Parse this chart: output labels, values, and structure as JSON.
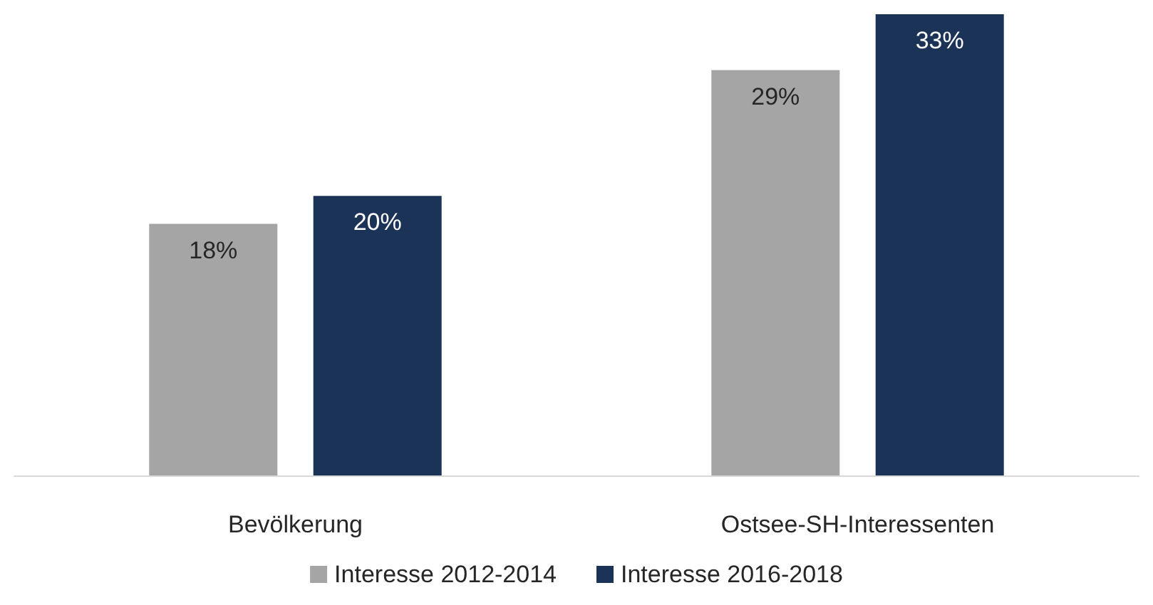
{
  "chart_data": {
    "type": "bar",
    "categories": [
      "Bevölkerung",
      "Ostsee-SH-Interessenten"
    ],
    "series": [
      {
        "name": "Interesse 2012-2014",
        "color": "#a5a5a5",
        "values": [
          18,
          29
        ],
        "value_labels": [
          "18%",
          "29%"
        ]
      },
      {
        "name": "Interesse 2016-2018",
        "color": "#1c3358",
        "values": [
          20,
          33
        ],
        "value_labels": [
          "20%",
          "33%"
        ]
      }
    ],
    "legend": "bottom"
  }
}
